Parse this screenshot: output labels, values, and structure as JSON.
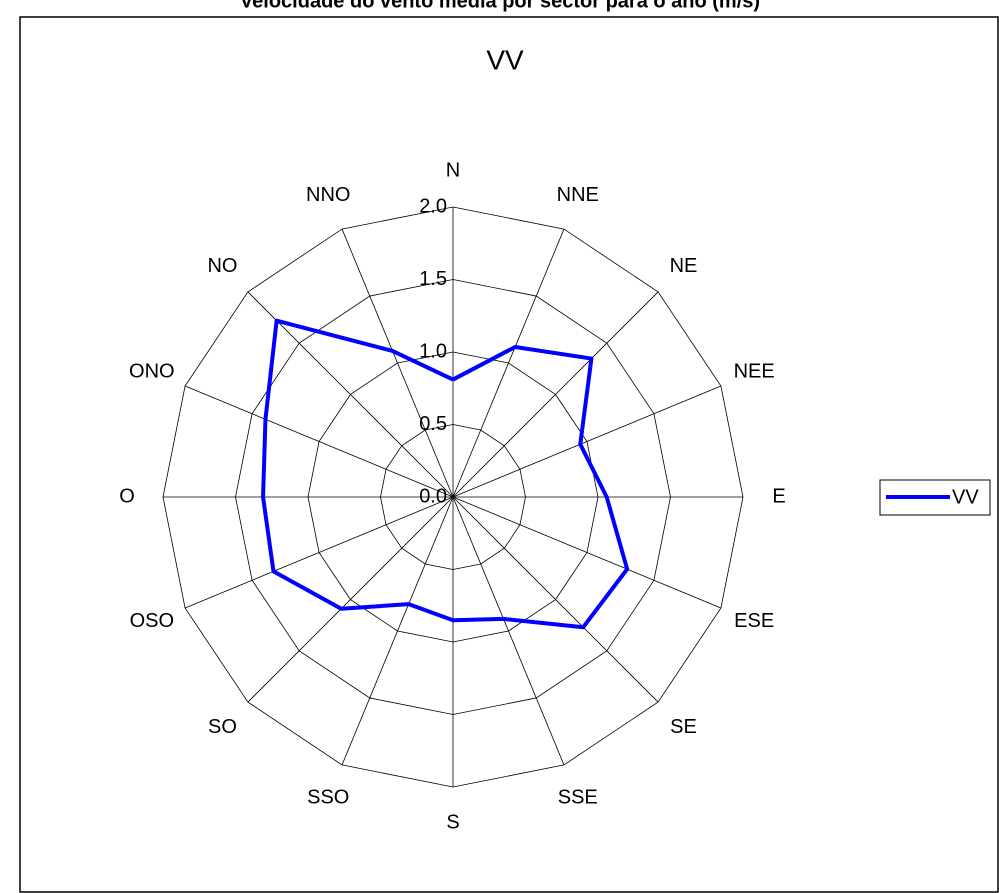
{
  "chart_data": {
    "type": "radar",
    "page_title": "Velocidade do vento média por sector para o ano (m/s)",
    "title": "VV",
    "categories": [
      "N",
      "NNE",
      "NE",
      "NEE",
      "E",
      "ESE",
      "SE",
      "SSE",
      "S",
      "SSO",
      "SO",
      "OSO",
      "O",
      "ONO",
      "NO",
      "NNO"
    ],
    "series": [
      {
        "name": "VV",
        "color": "#0000ff",
        "values": [
          0.81,
          1.12,
          1.35,
          0.95,
          1.06,
          1.3,
          1.27,
          0.91,
          0.85,
          0.8,
          1.09,
          1.34,
          1.31,
          1.4,
          1.72,
          1.09
        ]
      }
    ],
    "ylim": [
      0,
      2
    ],
    "yticks": [
      {
        "value": 0,
        "label": "0.0"
      },
      0.5,
      {
        "value": 1,
        "label": "1.0"
      },
      1.5,
      {
        "value": 2,
        "label": "2.0"
      }
    ],
    "grid": true,
    "legend": "right"
  }
}
